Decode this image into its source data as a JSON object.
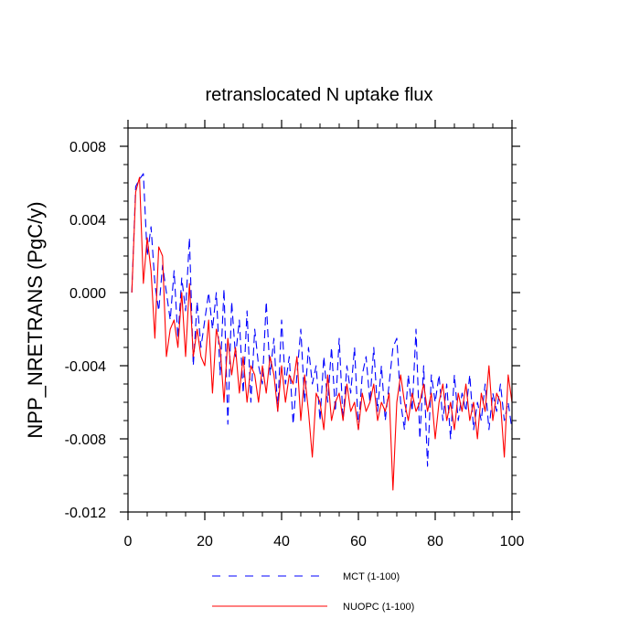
{
  "chart_data": {
    "type": "line",
    "title": "retranslocated N uptake flux",
    "xlabel": "",
    "ylabel": "NPP_NRETRANS  (PgC/y)",
    "xlim": [
      0,
      100
    ],
    "ylim": [
      -0.012,
      0.009
    ],
    "x_ticks": [
      0,
      20,
      40,
      60,
      80,
      100
    ],
    "x_tick_labels": [
      "0",
      "20",
      "40",
      "60",
      "80",
      "100"
    ],
    "y_ticks": [
      0.008,
      0.004,
      0.0,
      -0.004,
      -0.008,
      -0.012
    ],
    "y_tick_labels": [
      "0.008",
      "0.004",
      "0.000",
      "-0.004",
      "-0.008",
      "-0.012"
    ],
    "grid": false,
    "legend_position": "bottom",
    "series": [
      {
        "name": "MCT (1-100)",
        "color": "#0000ff",
        "dash": "dashed",
        "x": [
          1,
          2,
          3,
          4,
          5,
          6,
          7,
          8,
          9,
          10,
          11,
          12,
          13,
          14,
          15,
          16,
          17,
          18,
          19,
          20,
          21,
          22,
          23,
          24,
          25,
          26,
          27,
          28,
          29,
          30,
          31,
          32,
          33,
          34,
          35,
          36,
          37,
          38,
          39,
          40,
          41,
          42,
          43,
          44,
          45,
          46,
          47,
          48,
          49,
          50,
          51,
          52,
          53,
          54,
          55,
          56,
          57,
          58,
          59,
          60,
          61,
          62,
          63,
          64,
          65,
          66,
          67,
          68,
          69,
          70,
          71,
          72,
          73,
          74,
          75,
          76,
          77,
          78,
          79,
          80,
          81,
          82,
          83,
          84,
          85,
          86,
          87,
          88,
          89,
          90,
          91,
          92,
          93,
          94,
          95,
          96,
          97,
          98,
          99,
          100
        ],
        "values": [
          0.0,
          0.0058,
          0.0062,
          0.0065,
          0.002,
          0.0036,
          0.0005,
          -0.001,
          0.0015,
          0.0,
          -0.0015,
          0.0012,
          -0.0025,
          0.0008,
          -0.001,
          0.003,
          -0.004,
          -0.0005,
          -0.003,
          -0.0015,
          0.0,
          -0.002,
          0.0,
          -0.0045,
          0.0002,
          -0.0072,
          -0.0005,
          -0.0035,
          -0.0015,
          -0.0055,
          -0.001,
          -0.006,
          -0.002,
          -0.004,
          -0.005,
          -0.0005,
          -0.0045,
          -0.0025,
          -0.0065,
          -0.0015,
          -0.005,
          -0.0035,
          -0.0072,
          -0.0045,
          -0.002,
          -0.006,
          -0.003,
          -0.005,
          -0.004,
          -0.007,
          -0.0035,
          -0.006,
          -0.003,
          -0.0065,
          -0.0025,
          -0.007,
          -0.004,
          -0.0055,
          -0.003,
          -0.0075,
          -0.0045,
          -0.0035,
          -0.006,
          -0.003,
          -0.0065,
          -0.004,
          -0.007,
          -0.005,
          -0.003,
          -0.0025,
          -0.006,
          -0.0075,
          -0.0045,
          -0.0065,
          -0.002,
          -0.008,
          -0.004,
          -0.0095,
          -0.0045,
          -0.006,
          -0.0045,
          -0.007,
          -0.005,
          -0.008,
          -0.0045,
          -0.007,
          -0.0055,
          -0.0065,
          -0.0045,
          -0.0075,
          -0.006,
          -0.007,
          -0.005,
          -0.0075,
          -0.0055,
          -0.0065,
          -0.005,
          -0.007,
          -0.006,
          -0.0075
        ]
      },
      {
        "name": "NUOPC (1-100)",
        "color": "#ff0000",
        "dash": "solid",
        "x": [
          1,
          2,
          3,
          4,
          5,
          6,
          7,
          8,
          9,
          10,
          11,
          12,
          13,
          14,
          15,
          16,
          17,
          18,
          19,
          20,
          21,
          22,
          23,
          24,
          25,
          26,
          27,
          28,
          29,
          30,
          31,
          32,
          33,
          34,
          35,
          36,
          37,
          38,
          39,
          40,
          41,
          42,
          43,
          44,
          45,
          46,
          47,
          48,
          49,
          50,
          51,
          52,
          53,
          54,
          55,
          56,
          57,
          58,
          59,
          60,
          61,
          62,
          63,
          64,
          65,
          66,
          67,
          68,
          69,
          70,
          71,
          72,
          73,
          74,
          75,
          76,
          77,
          78,
          79,
          80,
          81,
          82,
          83,
          84,
          85,
          86,
          87,
          88,
          89,
          90,
          91,
          92,
          93,
          94,
          95,
          96,
          97,
          98,
          99,
          100
        ],
        "values": [
          0.0,
          0.0055,
          0.0063,
          0.0005,
          0.003,
          0.0012,
          -0.0025,
          0.0025,
          0.002,
          -0.0035,
          -0.002,
          -0.0015,
          -0.003,
          0.0,
          -0.0035,
          0.0005,
          -0.0035,
          -0.002,
          -0.0035,
          -0.004,
          -0.0015,
          -0.0055,
          -0.002,
          -0.003,
          -0.006,
          -0.0025,
          -0.0045,
          -0.003,
          -0.0055,
          -0.0035,
          -0.006,
          -0.004,
          -0.0045,
          -0.006,
          -0.004,
          -0.0055,
          -0.0035,
          -0.0045,
          -0.0065,
          -0.004,
          -0.006,
          -0.0045,
          -0.005,
          -0.0035,
          -0.007,
          -0.0045,
          -0.0065,
          -0.009,
          -0.0055,
          -0.006,
          -0.0075,
          -0.0045,
          -0.007,
          -0.006,
          -0.0055,
          -0.007,
          -0.005,
          -0.0065,
          -0.006,
          -0.0075,
          -0.0055,
          -0.0065,
          -0.006,
          -0.005,
          -0.007,
          -0.006,
          -0.0065,
          -0.0055,
          -0.0108,
          -0.006,
          -0.0045,
          -0.006,
          -0.007,
          -0.0055,
          -0.0065,
          -0.006,
          -0.005,
          -0.0065,
          -0.0055,
          -0.008,
          -0.006,
          -0.005,
          -0.007,
          -0.006,
          -0.0075,
          -0.0055,
          -0.0065,
          -0.005,
          -0.007,
          -0.006,
          -0.008,
          -0.0055,
          -0.0065,
          -0.004,
          -0.007,
          -0.0055,
          -0.006,
          -0.009,
          -0.0045,
          -0.006
        ]
      }
    ]
  }
}
